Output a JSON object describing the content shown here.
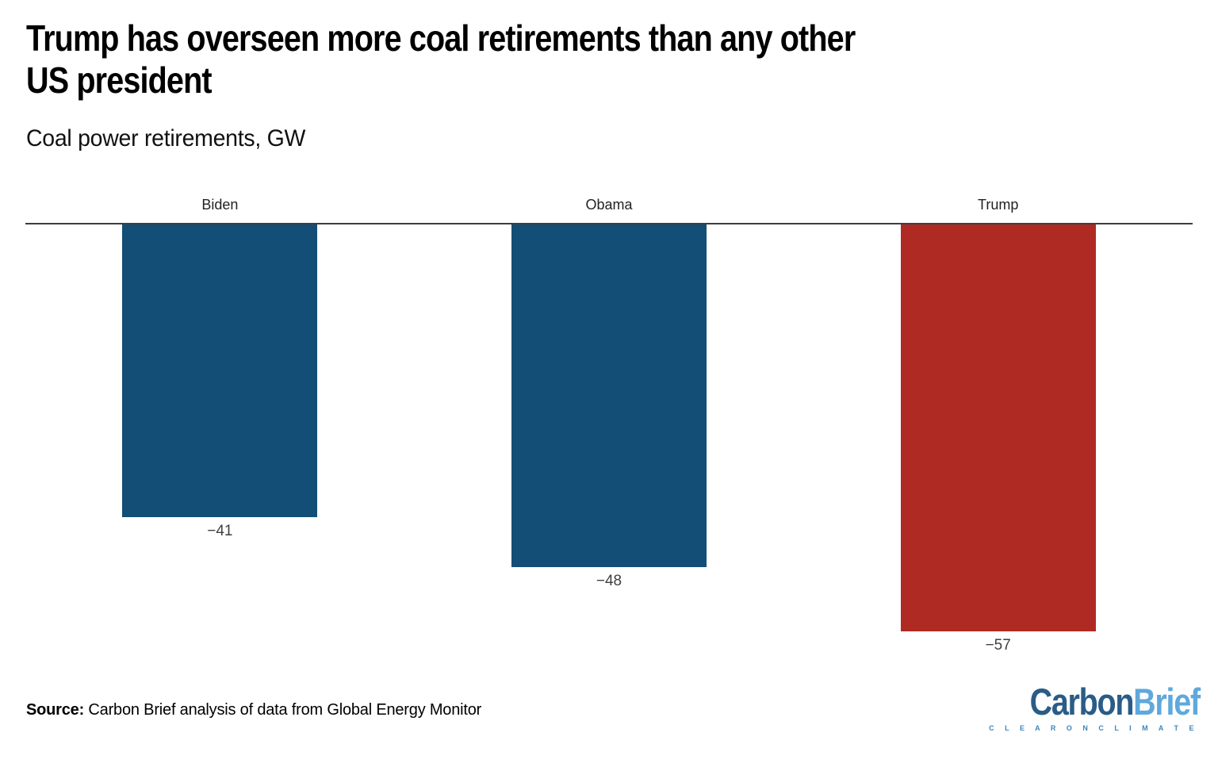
{
  "header": {
    "title": "Trump has overseen more coal retirements than any other US president",
    "title_line1": "Trump has overseen more coal retirements than any other",
    "title_line2": "US president",
    "subtitle": "Coal power retirements, GW"
  },
  "chart_data": {
    "type": "bar",
    "title": "Trump has overseen more coal retirements than any other US president",
    "subtitle": "Coal power retirements, GW",
    "ylabel": "Coal power retirements, GW",
    "categories": [
      "Biden",
      "Obama",
      "Trump"
    ],
    "values": [
      -41,
      -48,
      -57
    ],
    "value_labels": [
      "−41",
      "−48",
      "−57"
    ],
    "bar_colors": [
      "#124e75",
      "#124e75",
      "#af2a23"
    ],
    "axis_color": "#3d3d3d",
    "ylim": [
      -60,
      0
    ],
    "grid": false,
    "legend": false,
    "orientation": "vertical-negative",
    "category_label_position": "above-zero-line",
    "value_label_position": "below-bar-end"
  },
  "footer": {
    "source_label": "Source:",
    "source_text": " Carbon Brief analysis of data from Global Energy Monitor"
  },
  "logo": {
    "part1": "Carbon",
    "part2": "Brief",
    "tagline": "C L E A R   O N   C L I M A T E",
    "part1_color": "#2a5c87",
    "part2_color": "#5fa8dc",
    "tagline_color": "#3f86bb"
  }
}
